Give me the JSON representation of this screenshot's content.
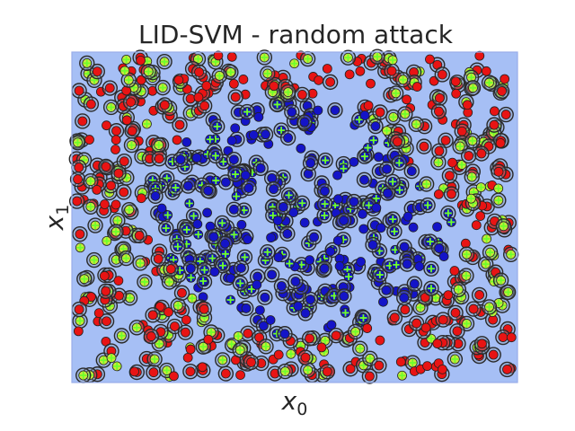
{
  "figure": {
    "title": "LID-SVM - random attack",
    "xlabel_base": "x",
    "xlabel_sub": "0",
    "ylabel_base": "x",
    "ylabel_sub": "1"
  },
  "colors": {
    "background": "#a6bff5",
    "frame": "#9aaeea",
    "class_red": "#e81414",
    "class_blue": "#1414c8",
    "ring": "#2a2a2a",
    "attack_fill": "#c8e83c",
    "attack_cross": "#6fff2a",
    "support_face": "#8a9ab0"
  },
  "chart_data": {
    "type": "scatter",
    "title": "LID-SVM - random attack",
    "xlabel": "x0",
    "ylabel": "x1",
    "xlim": [
      0,
      1
    ],
    "ylim": [
      0,
      1
    ],
    "xticks_shown": false,
    "yticks_shown": false,
    "grid": false,
    "legend": "none",
    "n_points": 900,
    "description_of_regions": "blue class concentrated in a central diagonal band; red class in the corners and along the borders",
    "series": [
      {
        "name": "",
        "marker": "circle",
        "color": "#e81414",
        "points_note": "red samples located near the edges and corners"
      },
      {
        "name": "",
        "marker": "circle",
        "color": "#1414c8",
        "points_note": "blue samples located in the central band"
      },
      {
        "name": "",
        "marker": "plus",
        "color": "#6fff2a",
        "points_note": "attack points (yellow/green cross) scattered everywhere"
      }
    ],
    "random_seed": 2024
  }
}
